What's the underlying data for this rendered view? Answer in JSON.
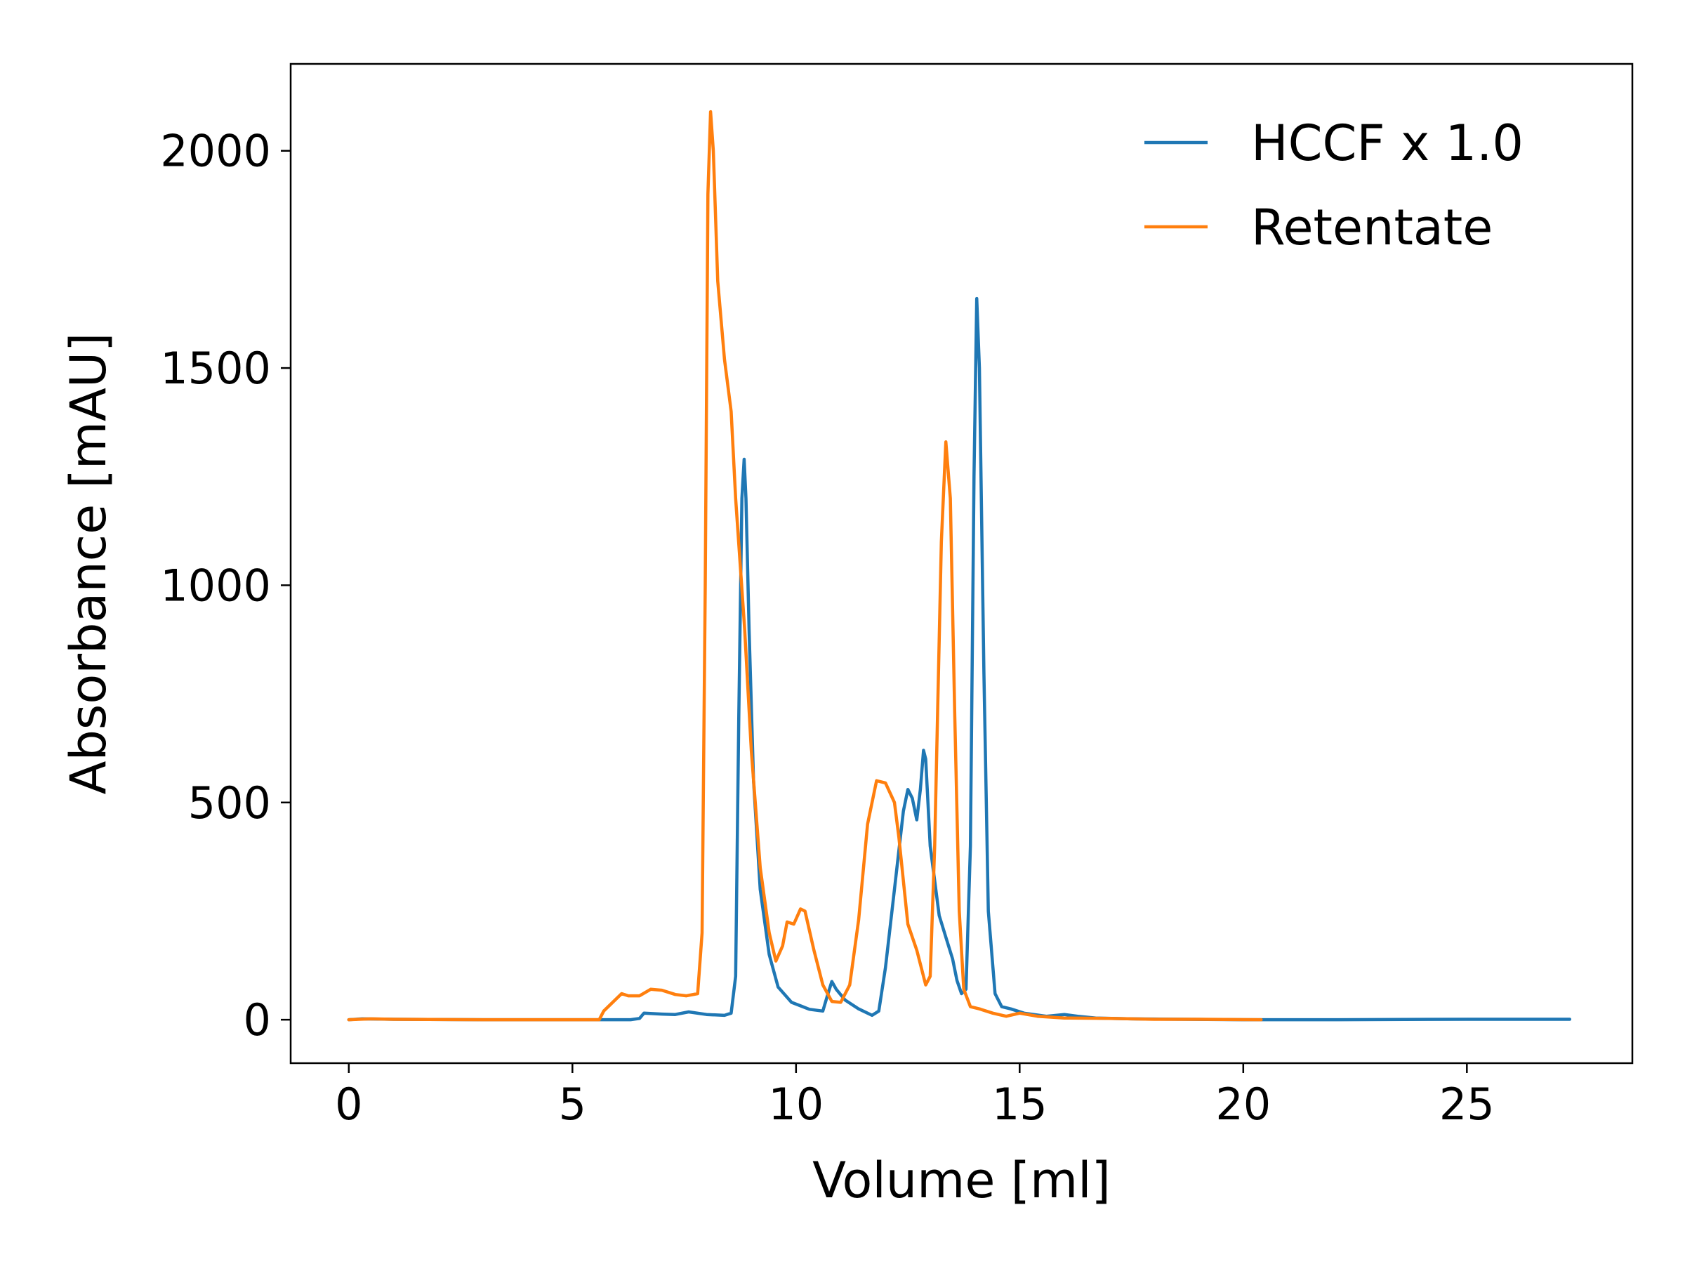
{
  "chart_data": {
    "type": "line",
    "title": "",
    "xlabel": "Volume [ml]",
    "ylabel": "Absorbance [mAU]",
    "xlim": [
      -1.3,
      28.7
    ],
    "ylim": [
      -100,
      2200
    ],
    "xticks": [
      0,
      5,
      10,
      15,
      20,
      25
    ],
    "yticks": [
      0,
      500,
      1000,
      1500,
      2000
    ],
    "grid": false,
    "legend": "top-right",
    "series": [
      {
        "name": "HCCF x 1.0",
        "color": "#1f77b4",
        "points": [
          [
            0,
            0
          ],
          [
            0.3,
            2
          ],
          [
            1,
            1
          ],
          [
            3,
            0
          ],
          [
            5,
            0
          ],
          [
            6.3,
            0
          ],
          [
            6.5,
            3
          ],
          [
            6.6,
            15
          ],
          [
            7,
            13
          ],
          [
            7.3,
            12
          ],
          [
            7.6,
            18
          ],
          [
            8,
            12
          ],
          [
            8.4,
            10
          ],
          [
            8.55,
            15
          ],
          [
            8.65,
            100
          ],
          [
            8.72,
            700
          ],
          [
            8.79,
            1200
          ],
          [
            8.84,
            1290
          ],
          [
            8.88,
            1200
          ],
          [
            8.95,
            900
          ],
          [
            9.05,
            550
          ],
          [
            9.2,
            300
          ],
          [
            9.4,
            150
          ],
          [
            9.6,
            75
          ],
          [
            9.9,
            40
          ],
          [
            10.3,
            24
          ],
          [
            10.6,
            20
          ],
          [
            10.7,
            55
          ],
          [
            10.8,
            88
          ],
          [
            10.9,
            70
          ],
          [
            11.1,
            45
          ],
          [
            11.4,
            25
          ],
          [
            11.7,
            10
          ],
          [
            11.85,
            20
          ],
          [
            12.0,
            120
          ],
          [
            12.2,
            300
          ],
          [
            12.4,
            480
          ],
          [
            12.5,
            530
          ],
          [
            12.6,
            510
          ],
          [
            12.7,
            460
          ],
          [
            12.78,
            530
          ],
          [
            12.85,
            620
          ],
          [
            12.9,
            600
          ],
          [
            13.0,
            400
          ],
          [
            13.2,
            240
          ],
          [
            13.35,
            190
          ],
          [
            13.5,
            140
          ],
          [
            13.6,
            90
          ],
          [
            13.7,
            60
          ],
          [
            13.8,
            70
          ],
          [
            13.9,
            400
          ],
          [
            13.98,
            1250
          ],
          [
            14.04,
            1660
          ],
          [
            14.1,
            1500
          ],
          [
            14.2,
            800
          ],
          [
            14.3,
            250
          ],
          [
            14.45,
            60
          ],
          [
            14.6,
            30
          ],
          [
            14.8,
            25
          ],
          [
            15.1,
            15
          ],
          [
            15.6,
            8
          ],
          [
            16,
            12
          ],
          [
            16.3,
            8
          ],
          [
            16.7,
            4
          ],
          [
            17.5,
            2
          ],
          [
            20,
            0
          ],
          [
            22,
            0
          ],
          [
            25,
            1
          ],
          [
            27.3,
            1
          ]
        ]
      },
      {
        "name": "Retentate",
        "color": "#ff7f0e",
        "points": [
          [
            0,
            0
          ],
          [
            0.5,
            2
          ],
          [
            1,
            1
          ],
          [
            3,
            0
          ],
          [
            5,
            0
          ],
          [
            5.6,
            0
          ],
          [
            5.7,
            20
          ],
          [
            6.1,
            60
          ],
          [
            6.25,
            55
          ],
          [
            6.5,
            55
          ],
          [
            6.75,
            70
          ],
          [
            7.0,
            68
          ],
          [
            7.3,
            58
          ],
          [
            7.55,
            55
          ],
          [
            7.8,
            60
          ],
          [
            7.9,
            200
          ],
          [
            7.97,
            1000
          ],
          [
            8.03,
            1900
          ],
          [
            8.09,
            2090
          ],
          [
            8.15,
            2000
          ],
          [
            8.25,
            1700
          ],
          [
            8.4,
            1520
          ],
          [
            8.55,
            1400
          ],
          [
            8.65,
            1200
          ],
          [
            8.75,
            1050
          ],
          [
            8.85,
            900
          ],
          [
            9.0,
            620
          ],
          [
            9.2,
            350
          ],
          [
            9.4,
            200
          ],
          [
            9.55,
            135
          ],
          [
            9.7,
            170
          ],
          [
            9.8,
            225
          ],
          [
            9.95,
            220
          ],
          [
            10.1,
            255
          ],
          [
            10.2,
            250
          ],
          [
            10.4,
            160
          ],
          [
            10.6,
            80
          ],
          [
            10.8,
            42
          ],
          [
            11.0,
            40
          ],
          [
            11.2,
            80
          ],
          [
            11.4,
            230
          ],
          [
            11.6,
            450
          ],
          [
            11.8,
            550
          ],
          [
            12.0,
            545
          ],
          [
            12.2,
            500
          ],
          [
            12.3,
            420
          ],
          [
            12.5,
            220
          ],
          [
            12.7,
            160
          ],
          [
            12.8,
            120
          ],
          [
            12.9,
            80
          ],
          [
            13.0,
            100
          ],
          [
            13.1,
            400
          ],
          [
            13.25,
            1100
          ],
          [
            13.35,
            1330
          ],
          [
            13.45,
            1200
          ],
          [
            13.55,
            700
          ],
          [
            13.65,
            250
          ],
          [
            13.75,
            70
          ],
          [
            13.9,
            30
          ],
          [
            14.1,
            25
          ],
          [
            14.4,
            15
          ],
          [
            14.7,
            8
          ],
          [
            15.0,
            15
          ],
          [
            15.4,
            8
          ],
          [
            16,
            4
          ],
          [
            17,
            3
          ],
          [
            18,
            1
          ],
          [
            19,
            1
          ],
          [
            20.4,
            0
          ]
        ]
      }
    ]
  }
}
